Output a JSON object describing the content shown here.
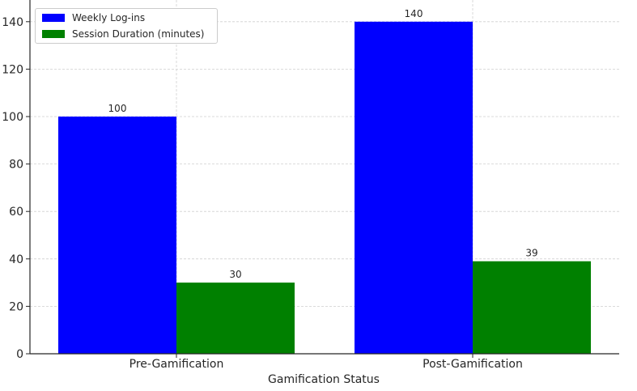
{
  "chart_data": {
    "type": "bar",
    "title": "",
    "xlabel": "Gamification Status",
    "ylabel": "",
    "categories": [
      "Pre-Gamification",
      "Post-Gamification"
    ],
    "series": [
      {
        "name": "Weekly Log-ins",
        "values": [
          100,
          140
        ],
        "color": "#0000ff"
      },
      {
        "name": "Session Duration (minutes)",
        "values": [
          30,
          39
        ],
        "color": "#008000"
      }
    ],
    "ylim": [
      0,
      147
    ],
    "yticks": [
      0,
      20,
      40,
      60,
      80,
      100,
      120,
      140
    ],
    "data_labels": [
      "100",
      "140",
      "30",
      "39"
    ],
    "ytick_labels": [
      "0",
      "20",
      "40",
      "60",
      "80",
      "100",
      "120",
      "140"
    ],
    "grid": true,
    "legend_position": "top-left"
  }
}
